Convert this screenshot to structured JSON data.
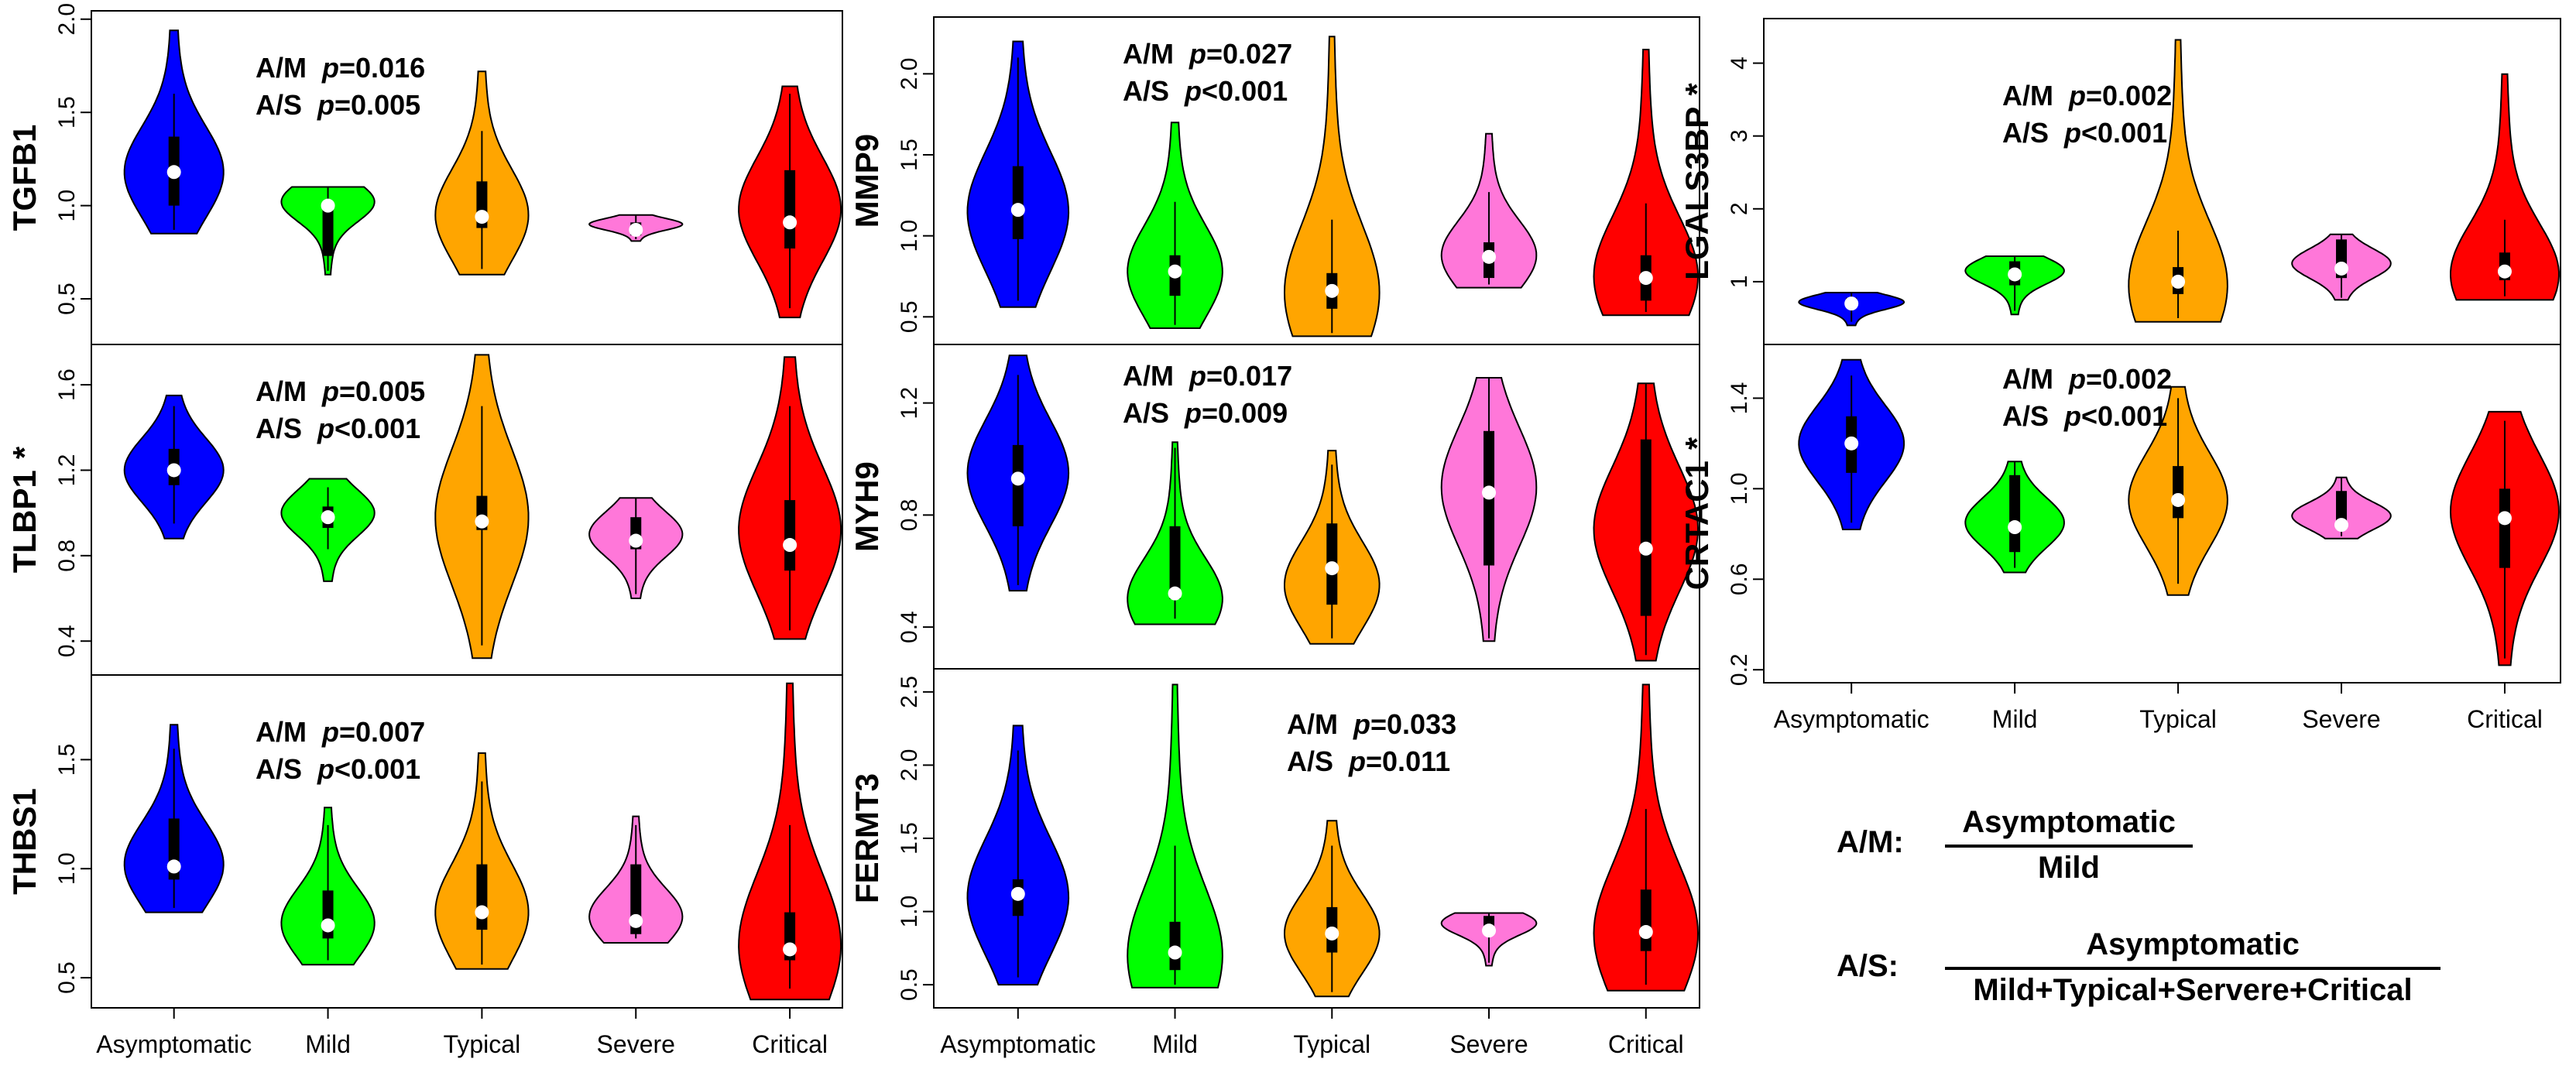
{
  "colors": {
    "Asymptomatic": "#0000ff",
    "Mild": "#00ff00",
    "Typical": "#ffa500",
    "Severe": "#ff77d9",
    "Critical": "#ff0000"
  },
  "legend": {
    "am_key": "A/M:",
    "am_numerator": "Asymptomatic",
    "am_denominator": "Mild",
    "as_key": "A/S:",
    "as_numerator": "Asymptomatic",
    "as_denominator": "Mild+Typical+Servere+Critical"
  },
  "chart_data": [
    {
      "type": "violin",
      "gene": "TGFB1",
      "star": false,
      "ylim": [
        0.3,
        2.0
      ],
      "yticks": [
        0.5,
        1.0,
        1.5,
        2.0
      ],
      "ytick_labels": [
        "0.5",
        "1.0",
        "1.5",
        "2.0"
      ],
      "annotations": [
        {
          "label": "A/M",
          "p": "p",
          "value": "=0.016"
        },
        {
          "label": "A/S",
          "p": "p",
          "value": "=0.005"
        }
      ],
      "categories": [],
      "series": [
        {
          "name": "Asymptomatic",
          "min": 0.85,
          "q1": 1.0,
          "median": 1.18,
          "q3": 1.37,
          "max": 1.94,
          "wmin": 0.87,
          "wmax": 1.6,
          "peak": 1.18
        },
        {
          "name": "Mild",
          "min": 0.63,
          "q1": 0.73,
          "median": 1.0,
          "q3": 1.02,
          "max": 1.1,
          "wmin": 0.65,
          "wmax": 1.1,
          "peak": 1.02
        },
        {
          "name": "Typical",
          "min": 0.63,
          "q1": 0.88,
          "median": 0.94,
          "q3": 1.13,
          "max": 1.72,
          "wmin": 0.66,
          "wmax": 1.4,
          "peak": 0.95
        },
        {
          "name": "Severe",
          "min": 0.81,
          "q1": 0.84,
          "median": 0.87,
          "q3": 0.91,
          "max": 0.95,
          "wmin": 0.82,
          "wmax": 0.95,
          "peak": 0.9
        },
        {
          "name": "Critical",
          "min": 0.4,
          "q1": 0.77,
          "median": 0.91,
          "q3": 1.19,
          "max": 1.64,
          "wmin": 0.45,
          "wmax": 1.6,
          "peak": 0.98
        }
      ]
    },
    {
      "type": "violin",
      "gene": "TLBP1",
      "star": true,
      "ylim": [
        0.28,
        1.75
      ],
      "yticks": [
        0.4,
        0.8,
        1.2,
        1.6
      ],
      "ytick_labels": [
        "0.4",
        "0.8",
        "1.2",
        "1.6"
      ],
      "annotations": [
        {
          "label": "A/M",
          "p": "p",
          "value": "=0.005"
        },
        {
          "label": "A/S",
          "p": "p",
          "value": "<0.001"
        }
      ],
      "categories": [],
      "series": [
        {
          "name": "Asymptomatic",
          "min": 0.88,
          "q1": 1.13,
          "median": 1.2,
          "q3": 1.3,
          "max": 1.55,
          "wmin": 0.95,
          "wmax": 1.5,
          "peak": 1.2
        },
        {
          "name": "Mild",
          "min": 0.68,
          "q1": 0.93,
          "median": 0.98,
          "q3": 1.03,
          "max": 1.16,
          "wmin": 0.83,
          "wmax": 1.12,
          "peak": 1.0
        },
        {
          "name": "Typical",
          "min": 0.32,
          "q1": 0.92,
          "median": 0.96,
          "q3": 1.08,
          "max": 1.74,
          "wmin": 0.38,
          "wmax": 1.5,
          "peak": 0.98
        },
        {
          "name": "Severe",
          "min": 0.6,
          "q1": 0.83,
          "median": 0.87,
          "q3": 0.98,
          "max": 1.07,
          "wmin": 0.62,
          "wmax": 1.07,
          "peak": 0.9
        },
        {
          "name": "Critical",
          "min": 0.41,
          "q1": 0.73,
          "median": 0.85,
          "q3": 1.06,
          "max": 1.73,
          "wmin": 0.45,
          "wmax": 1.5,
          "peak": 0.92
        }
      ]
    },
    {
      "type": "violin",
      "gene": "THBS1",
      "star": false,
      "ylim": [
        0.4,
        1.85
      ],
      "yticks": [
        0.5,
        1.0,
        1.5
      ],
      "ytick_labels": [
        "0.5",
        "1.0",
        "1.5"
      ],
      "annotations": [
        {
          "label": "A/M",
          "p": "p",
          "value": "=0.007"
        },
        {
          "label": "A/S",
          "p": "p",
          "value": "<0.001"
        }
      ],
      "categories": [
        "Asymptomatic",
        "Mild",
        "Typical",
        "Severe",
        "Critical"
      ],
      "series": [
        {
          "name": "Asymptomatic",
          "min": 0.8,
          "q1": 0.95,
          "median": 1.01,
          "q3": 1.23,
          "max": 1.66,
          "wmin": 0.82,
          "wmax": 1.55,
          "peak": 1.02
        },
        {
          "name": "Mild",
          "min": 0.56,
          "q1": 0.68,
          "median": 0.74,
          "q3": 0.9,
          "max": 1.28,
          "wmin": 0.58,
          "wmax": 1.2,
          "peak": 0.75
        },
        {
          "name": "Typical",
          "min": 0.54,
          "q1": 0.72,
          "median": 0.8,
          "q3": 1.02,
          "max": 1.53,
          "wmin": 0.56,
          "wmax": 1.4,
          "peak": 0.8
        },
        {
          "name": "Severe",
          "min": 0.66,
          "q1": 0.7,
          "median": 0.76,
          "q3": 1.02,
          "max": 1.24,
          "wmin": 0.68,
          "wmax": 1.2,
          "peak": 0.78
        },
        {
          "name": "Critical",
          "min": 0.4,
          "q1": 0.58,
          "median": 0.63,
          "q3": 0.8,
          "max": 1.85,
          "wmin": 0.45,
          "wmax": 1.2,
          "peak": 0.65
        }
      ]
    },
    {
      "type": "violin",
      "gene": "MMP9",
      "star": false,
      "ylim": [
        0.38,
        2.3
      ],
      "yticks": [
        0.5,
        1.0,
        1.5,
        2.0
      ],
      "ytick_labels": [
        "0.5",
        "1.0",
        "1.5",
        "2.0"
      ],
      "annotations": [
        {
          "label": "A/M",
          "p": "p",
          "value": "=0.027"
        },
        {
          "label": "A/S",
          "p": "p",
          "value": "<0.001"
        }
      ],
      "categories": [],
      "series": [
        {
          "name": "Asymptomatic",
          "min": 0.56,
          "q1": 0.98,
          "median": 1.16,
          "q3": 1.43,
          "max": 2.2,
          "wmin": 0.6,
          "wmax": 2.1,
          "peak": 1.15
        },
        {
          "name": "Mild",
          "min": 0.43,
          "q1": 0.63,
          "median": 0.78,
          "q3": 0.88,
          "max": 1.7,
          "wmin": 0.45,
          "wmax": 1.21,
          "peak": 0.78
        },
        {
          "name": "Typical",
          "min": 0.38,
          "q1": 0.55,
          "median": 0.66,
          "q3": 0.77,
          "max": 2.23,
          "wmin": 0.4,
          "wmax": 1.1,
          "peak": 0.65
        },
        {
          "name": "Severe",
          "min": 0.68,
          "q1": 0.74,
          "median": 0.87,
          "q3": 0.96,
          "max": 1.63,
          "wmin": 0.7,
          "wmax": 1.27,
          "peak": 0.88
        },
        {
          "name": "Critical",
          "min": 0.51,
          "q1": 0.6,
          "median": 0.74,
          "q3": 0.88,
          "max": 2.15,
          "wmin": 0.53,
          "wmax": 1.2,
          "peak": 0.75
        }
      ]
    },
    {
      "type": "violin",
      "gene": "MYH9",
      "star": false,
      "ylim": [
        0.28,
        1.38
      ],
      "yticks": [
        0.4,
        0.8,
        1.2
      ],
      "ytick_labels": [
        "0.4",
        "0.8",
        "1.2"
      ],
      "annotations": [
        {
          "label": "A/M",
          "p": "p",
          "value": "=0.017"
        },
        {
          "label": "A/S",
          "p": "p",
          "value": "=0.009"
        }
      ],
      "categories": [],
      "series": [
        {
          "name": "Asymptomatic",
          "min": 0.53,
          "q1": 0.76,
          "median": 0.93,
          "q3": 1.05,
          "max": 1.37,
          "wmin": 0.55,
          "wmax": 1.3,
          "peak": 0.95
        },
        {
          "name": "Mild",
          "min": 0.41,
          "q1": 0.5,
          "median": 0.52,
          "q3": 0.76,
          "max": 1.06,
          "wmin": 0.43,
          "wmax": 1.04,
          "peak": 0.5
        },
        {
          "name": "Typical",
          "min": 0.34,
          "q1": 0.48,
          "median": 0.61,
          "q3": 0.77,
          "max": 1.03,
          "wmin": 0.36,
          "wmax": 0.98,
          "peak": 0.55
        },
        {
          "name": "Severe",
          "min": 0.35,
          "q1": 0.62,
          "median": 0.88,
          "q3": 1.1,
          "max": 1.29,
          "wmin": 0.36,
          "wmax": 1.29,
          "peak": 0.9
        },
        {
          "name": "Critical",
          "min": 0.28,
          "q1": 0.44,
          "median": 0.68,
          "q3": 1.07,
          "max": 1.27,
          "wmin": 0.3,
          "wmax": 1.27,
          "peak": 0.75
        }
      ]
    },
    {
      "type": "violin",
      "gene": "FERMT3",
      "star": false,
      "ylim": [
        0.4,
        2.6
      ],
      "yticks": [
        0.5,
        1.0,
        1.5,
        2.0,
        2.5
      ],
      "ytick_labels": [
        "0.5",
        "1.0",
        "1.5",
        "2.0",
        "2.5"
      ],
      "annotations": [
        {
          "label": "A/M",
          "p": "p",
          "value": "=0.033"
        },
        {
          "label": "A/S",
          "p": "p",
          "value": "=0.011"
        }
      ],
      "categories": [
        "Asymptomatic",
        "Mild",
        "Typical",
        "Severe",
        "Critical"
      ],
      "series": [
        {
          "name": "Asymptomatic",
          "min": 0.5,
          "q1": 0.97,
          "median": 1.12,
          "q3": 1.22,
          "max": 2.27,
          "wmin": 0.55,
          "wmax": 2.1,
          "peak": 1.1
        },
        {
          "name": "Mild",
          "min": 0.48,
          "q1": 0.6,
          "median": 0.72,
          "q3": 0.93,
          "max": 2.55,
          "wmin": 0.5,
          "wmax": 1.45,
          "peak": 0.7
        },
        {
          "name": "Typical",
          "min": 0.42,
          "q1": 0.72,
          "median": 0.85,
          "q3": 1.03,
          "max": 1.62,
          "wmin": 0.45,
          "wmax": 1.45,
          "peak": 0.85
        },
        {
          "name": "Severe",
          "min": 0.63,
          "q1": 0.85,
          "median": 0.87,
          "q3": 0.97,
          "max": 0.99,
          "wmin": 0.65,
          "wmax": 0.99,
          "peak": 0.92
        },
        {
          "name": "Critical",
          "min": 0.46,
          "q1": 0.73,
          "median": 0.86,
          "q3": 1.15,
          "max": 2.55,
          "wmin": 0.5,
          "wmax": 1.7,
          "peak": 0.85
        }
      ]
    },
    {
      "type": "violin",
      "gene": "LGALS3BP",
      "star": true,
      "ylim": [
        0.25,
        4.5
      ],
      "yticks": [
        1,
        2,
        3,
        4
      ],
      "ytick_labels": [
        "1",
        "2",
        "3",
        "4"
      ],
      "annotations": [
        {
          "label": "A/M",
          "p": "p",
          "value": "=0.002"
        },
        {
          "label": "A/S",
          "p": "p",
          "value": "<0.001"
        }
      ],
      "categories": [],
      "series": [
        {
          "name": "Asymptomatic",
          "min": 0.4,
          "q1": 0.65,
          "median": 0.7,
          "q3": 0.78,
          "max": 0.85,
          "wmin": 0.45,
          "wmax": 0.85,
          "peak": 0.72
        },
        {
          "name": "Mild",
          "min": 0.55,
          "q1": 0.95,
          "median": 1.1,
          "q3": 1.28,
          "max": 1.35,
          "wmin": 0.6,
          "wmax": 1.35,
          "peak": 1.15
        },
        {
          "name": "Typical",
          "min": 0.45,
          "q1": 0.83,
          "median": 1.0,
          "q3": 1.2,
          "max": 4.32,
          "wmin": 0.5,
          "wmax": 1.7,
          "peak": 0.95
        },
        {
          "name": "Severe",
          "min": 0.75,
          "q1": 1.05,
          "median": 1.18,
          "q3": 1.58,
          "max": 1.65,
          "wmin": 0.78,
          "wmax": 1.65,
          "peak": 1.25
        },
        {
          "name": "Critical",
          "min": 0.75,
          "q1": 1.02,
          "median": 1.14,
          "q3": 1.4,
          "max": 3.85,
          "wmin": 0.8,
          "wmax": 1.85,
          "peak": 1.1
        }
      ]
    },
    {
      "type": "violin",
      "gene": "CRTAC1",
      "star": true,
      "ylim": [
        0.18,
        1.6
      ],
      "yticks": [
        0.2,
        0.6,
        1.0,
        1.4
      ],
      "ytick_labels": [
        "0.2",
        "0.6",
        "1.0",
        "1.4"
      ],
      "annotations": [
        {
          "label": "A/M",
          "p": "p",
          "value": "=0.002"
        },
        {
          "label": "A/S",
          "p": "p",
          "value": "<0.001"
        }
      ],
      "categories": [
        "Asymptomatic",
        "Mild",
        "Typical",
        "Severe",
        "Critical"
      ],
      "series": [
        {
          "name": "Asymptomatic",
          "min": 0.82,
          "q1": 1.07,
          "median": 1.2,
          "q3": 1.32,
          "max": 1.57,
          "wmin": 0.85,
          "wmax": 1.5,
          "peak": 1.2
        },
        {
          "name": "Mild",
          "min": 0.63,
          "q1": 0.72,
          "median": 0.83,
          "q3": 1.06,
          "max": 1.12,
          "wmin": 0.65,
          "wmax": 1.12,
          "peak": 0.85
        },
        {
          "name": "Typical",
          "min": 0.53,
          "q1": 0.87,
          "median": 0.95,
          "q3": 1.1,
          "max": 1.45,
          "wmin": 0.58,
          "wmax": 1.4,
          "peak": 0.95
        },
        {
          "name": "Severe",
          "min": 0.78,
          "q1": 0.82,
          "median": 0.84,
          "q3": 0.99,
          "max": 1.05,
          "wmin": 0.79,
          "wmax": 1.05,
          "peak": 0.88
        },
        {
          "name": "Critical",
          "min": 0.22,
          "q1": 0.65,
          "median": 0.87,
          "q3": 1.0,
          "max": 1.34,
          "wmin": 0.25,
          "wmax": 1.3,
          "peak": 0.9
        }
      ]
    }
  ]
}
